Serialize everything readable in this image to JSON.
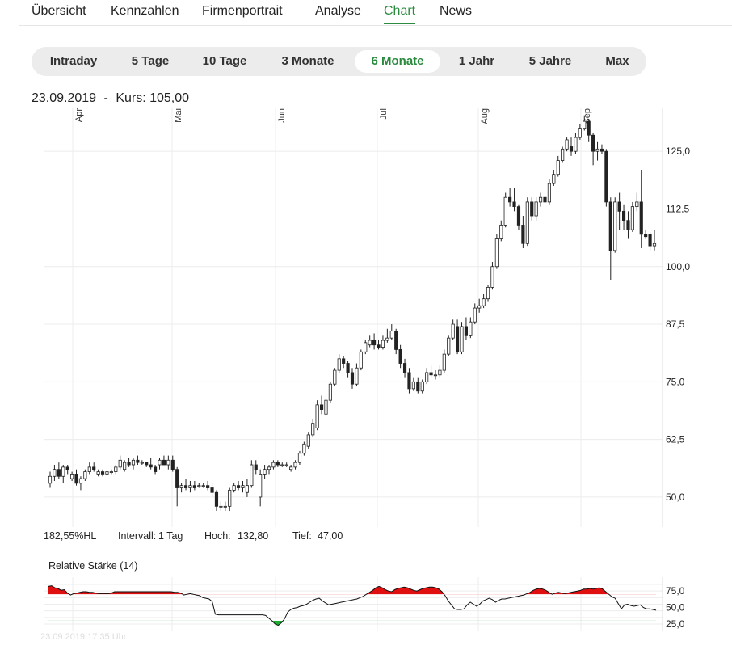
{
  "nav": {
    "tabs": [
      {
        "label": "Übersicht",
        "active": false
      },
      {
        "label": "Kennzahlen",
        "active": false
      },
      {
        "label": "Firmenportrait",
        "active": false
      },
      {
        "label": "Analyse",
        "active": false
      },
      {
        "label": "Chart",
        "active": true
      },
      {
        "label": "News",
        "active": false
      }
    ]
  },
  "ranges": [
    {
      "label": "Intraday",
      "active": false
    },
    {
      "label": "5 Tage",
      "active": false
    },
    {
      "label": "10 Tage",
      "active": false
    },
    {
      "label": "3 Monate",
      "active": false
    },
    {
      "label": "6 Monate",
      "active": true
    },
    {
      "label": "1 Jahr",
      "active": false
    },
    {
      "label": "5 Jahre",
      "active": false
    },
    {
      "label": "Max",
      "active": false
    }
  ],
  "quote": {
    "date": "23.09.2019",
    "separator": "-",
    "label": "Kurs:",
    "value": "105,00"
  },
  "info": {
    "range_pct": "182,55%HL",
    "interval_label": "Intervall:",
    "interval_value": "1 Tag",
    "high_label": "Hoch:",
    "high_value": "132,80",
    "low_label": "Tief:",
    "low_value": "47,00"
  },
  "rsi": {
    "title": "Relative Stärke (14)"
  },
  "timestamp": "23.09.2019 17:35 Uhr",
  "colors": {
    "accent": "#2a8a3e",
    "overbought": "#e01010",
    "oversold": "#18b02e",
    "candle": "#222222"
  },
  "chart_data": [
    {
      "type": "candlestick",
      "x_ticks": [
        "Apr",
        "Mai",
        "Jun",
        "Jul",
        "Aug",
        "Sep"
      ],
      "y_ticks": [
        "125,0",
        "112,5",
        "100,0",
        "87,5",
        "75,0",
        "62,5",
        "50,0"
      ],
      "ylim": [
        43.5,
        134.5
      ],
      "grid": true,
      "ohlc": [
        [
          53,
          55.5,
          52,
          54.5
        ],
        [
          54.5,
          57,
          53.5,
          56
        ],
        [
          56,
          57.5,
          54,
          54.5
        ],
        [
          54.5,
          57,
          53,
          56.5
        ],
        [
          56.5,
          57,
          55,
          56
        ],
        [
          54,
          55.5,
          53.5,
          55
        ],
        [
          55,
          56,
          52.5,
          53
        ],
        [
          53,
          54.5,
          51.5,
          54
        ],
        [
          54,
          56,
          53.5,
          55.5
        ],
        [
          55.5,
          57.5,
          55,
          56.5
        ],
        [
          56.5,
          57.5,
          55.5,
          56
        ],
        [
          55,
          56,
          54.5,
          55.5
        ],
        [
          55.5,
          56,
          54.5,
          55
        ],
        [
          55,
          56,
          54.5,
          55.5
        ],
        [
          55.5,
          56,
          55,
          55.5
        ],
        [
          55.5,
          57,
          55,
          56.5
        ],
        [
          56.5,
          59,
          56,
          58
        ],
        [
          56,
          58,
          55.5,
          57.5
        ],
        [
          57.5,
          58.5,
          56.5,
          57
        ],
        [
          57,
          58.5,
          56,
          58
        ],
        [
          58,
          59,
          57,
          57.5
        ],
        [
          57.5,
          58,
          57,
          57.5
        ],
        [
          57.5,
          57.5,
          56.5,
          57
        ],
        [
          57,
          58.5,
          56,
          56.5
        ],
        [
          56.5,
          57,
          55,
          55.5
        ],
        [
          57,
          58.5,
          56,
          58
        ],
        [
          58,
          59,
          57,
          57
        ],
        [
          57,
          59,
          56,
          58
        ],
        [
          58,
          59,
          55.5,
          56
        ],
        [
          56,
          56.5,
          48,
          52
        ],
        [
          52,
          53,
          51,
          52.5
        ],
        [
          52.5,
          54,
          51.5,
          52
        ],
        [
          52,
          53.5,
          51,
          52.5
        ],
        [
          52.5,
          53.5,
          51.5,
          52
        ],
        [
          52.5,
          53,
          52,
          52.5
        ],
        [
          52.5,
          53,
          52,
          52.5
        ],
        [
          52.5,
          53.5,
          51.5,
          52
        ],
        [
          52,
          53,
          50,
          51
        ],
        [
          51,
          51.5,
          47,
          48
        ],
        [
          48,
          49,
          47,
          48
        ],
        [
          48,
          49,
          47,
          48
        ],
        [
          48,
          52,
          47,
          51.5
        ],
        [
          51.5,
          53,
          51,
          52.5
        ],
        [
          52.5,
          53.5,
          51.5,
          52
        ],
        [
          52,
          53.5,
          51,
          52.5
        ],
        [
          51,
          54,
          50,
          52.5
        ],
        [
          52.5,
          58,
          52,
          57
        ],
        [
          57,
          58,
          55,
          56
        ],
        [
          50,
          56,
          48,
          55
        ],
        [
          55,
          57,
          54,
          56
        ],
        [
          56,
          57,
          55,
          56.5
        ],
        [
          56.5,
          58,
          56,
          57.5
        ],
        [
          57.5,
          58,
          56.5,
          57
        ],
        [
          57,
          57.5,
          56.5,
          57
        ],
        [
          57,
          57.5,
          56.5,
          57
        ],
        [
          56,
          57,
          55.5,
          56.5
        ],
        [
          56.5,
          58,
          56,
          57.5
        ],
        [
          57.5,
          60,
          57,
          59.5
        ],
        [
          59.5,
          62,
          59,
          61.5
        ],
        [
          61,
          64,
          60.5,
          63.5
        ],
        [
          63.5,
          67,
          63,
          66
        ],
        [
          65,
          71,
          64.5,
          70
        ],
        [
          70,
          72,
          68,
          69
        ],
        [
          68,
          72,
          67.5,
          71
        ],
        [
          71,
          75,
          70.5,
          74.5
        ],
        [
          74.5,
          78,
          74,
          77.5
        ],
        [
          77.5,
          81,
          77,
          80
        ],
        [
          80,
          80.5,
          78,
          79
        ],
        [
          79,
          79.5,
          76,
          77
        ],
        [
          77,
          78,
          73.5,
          74.5
        ],
        [
          74.5,
          79,
          74,
          78
        ],
        [
          78,
          82,
          77.5,
          81.5
        ],
        [
          81.5,
          84,
          81,
          83.5
        ],
        [
          83,
          85,
          82.5,
          84
        ],
        [
          84,
          85.5,
          82,
          83
        ],
        [
          83,
          84,
          82,
          82.5
        ],
        [
          82.5,
          85,
          82,
          84
        ],
        [
          84,
          86.5,
          83.5,
          84.5
        ],
        [
          84.5,
          87.5,
          84,
          86
        ],
        [
          86,
          86.5,
          81,
          82
        ],
        [
          82,
          83,
          78,
          79
        ],
        [
          79,
          80,
          76,
          77
        ],
        [
          77,
          78,
          72.5,
          73.5
        ],
        [
          73.5,
          76,
          73,
          75
        ],
        [
          75,
          76,
          72.5,
          73
        ],
        [
          73,
          75.5,
          72.5,
          75
        ],
        [
          75,
          78,
          74.5,
          77
        ],
        [
          77,
          78.5,
          76,
          76.5
        ],
        [
          76.5,
          77.5,
          75.5,
          76.5
        ],
        [
          76.5,
          78.5,
          76,
          77.5
        ],
        [
          77.5,
          82,
          77,
          81
        ],
        [
          81,
          85,
          80.5,
          84.5
        ],
        [
          84.5,
          88.5,
          84,
          87.5
        ],
        [
          87,
          88.5,
          81,
          81.5
        ],
        [
          81.5,
          88,
          81,
          87
        ],
        [
          87,
          89,
          84,
          85
        ],
        [
          85,
          89,
          84.5,
          88
        ],
        [
          88,
          92,
          87.5,
          91
        ],
        [
          91,
          93,
          90,
          91.5
        ],
        [
          91.5,
          94,
          91,
          93
        ],
        [
          93,
          96,
          92.5,
          95.5
        ],
        [
          95.5,
          101,
          95,
          100
        ],
        [
          100,
          107,
          99.5,
          106
        ],
        [
          106,
          110,
          105.5,
          109
        ],
        [
          109,
          116,
          108.5,
          115
        ],
        [
          115,
          117,
          113,
          114
        ],
        [
          114,
          117,
          112,
          113
        ],
        [
          113,
          113.5,
          108,
          109
        ],
        [
          109,
          111,
          104,
          105
        ],
        [
          105,
          115,
          104.5,
          114
        ],
        [
          114,
          115,
          110,
          111
        ],
        [
          111,
          115,
          110,
          114
        ],
        [
          114,
          116,
          113,
          115
        ],
        [
          115,
          115.5,
          113,
          114
        ],
        [
          114,
          119,
          113.5,
          118
        ],
        [
          118,
          121,
          117.5,
          120
        ],
        [
          120,
          124,
          119.5,
          123
        ],
        [
          123,
          126,
          122.5,
          125.5
        ],
        [
          125.5,
          128,
          125,
          127.5
        ],
        [
          126,
          128,
          124,
          125
        ],
        [
          125,
          129,
          124.5,
          128
        ],
        [
          128,
          131,
          127.5,
          130
        ],
        [
          130,
          132.8,
          129.5,
          131.5
        ],
        [
          131.5,
          132,
          127,
          128.5
        ],
        [
          128.5,
          129,
          122,
          125
        ],
        [
          125,
          127,
          123,
          125.5
        ],
        [
          125.5,
          126.5,
          124.5,
          125
        ],
        [
          125,
          125.5,
          113,
          114
        ],
        [
          114,
          115,
          97,
          103.5
        ],
        [
          103.5,
          115,
          103,
          114
        ],
        [
          114,
          116,
          108,
          112
        ],
        [
          112,
          113.5,
          108,
          110
        ],
        [
          110,
          112,
          106,
          108
        ],
        [
          108,
          114,
          107.5,
          113
        ],
        [
          113,
          116,
          112,
          114
        ],
        [
          114,
          121,
          104,
          107
        ],
        [
          107,
          108,
          106,
          106.5
        ],
        [
          107,
          107.5,
          103.5,
          104.5
        ],
        [
          104.5,
          108,
          103.5,
          105
        ]
      ]
    },
    {
      "type": "area",
      "title": "Relative Stärke (14)",
      "y_ticks": [
        "75,0",
        "50,0",
        "25,0"
      ],
      "ylim": [
        14,
        96
      ],
      "thresholds": [
        70,
        30
      ],
      "values": [
        82,
        83,
        80,
        79,
        76,
        77,
        72,
        69,
        71,
        72,
        73,
        74,
        74,
        73,
        73,
        72,
        71,
        71,
        71,
        71,
        72,
        74,
        74,
        74,
        74,
        74,
        74,
        74,
        74,
        74,
        74,
        74,
        74,
        74,
        74,
        74,
        74,
        74,
        74,
        74,
        73,
        73,
        72,
        69,
        70,
        71,
        70,
        69,
        68,
        65,
        64,
        63,
        59,
        40,
        39,
        39,
        39,
        39,
        39,
        39,
        39,
        39,
        39,
        39,
        39,
        39,
        39,
        39,
        39,
        38,
        34,
        30,
        25,
        23,
        27,
        33,
        43,
        47,
        49,
        50,
        52,
        53,
        55,
        58,
        61,
        63,
        64,
        60,
        57,
        54,
        55,
        56,
        57,
        58,
        59,
        60,
        61,
        62,
        63,
        65,
        67,
        70,
        73,
        76,
        80,
        82,
        80,
        77,
        75,
        74,
        77,
        79,
        80,
        81,
        80,
        78,
        76,
        75,
        77,
        79,
        80,
        81,
        81,
        80,
        78,
        74,
        68,
        60,
        54,
        48,
        47,
        47,
        48,
        54,
        58,
        55,
        52,
        55,
        60,
        62,
        64,
        62,
        58,
        61,
        63,
        63,
        64,
        65,
        66,
        67,
        68,
        69,
        71,
        73,
        76,
        78,
        79,
        78,
        76,
        73,
        70,
        72,
        73,
        72,
        71,
        72,
        73,
        74,
        75,
        76,
        78,
        78,
        79,
        78,
        79,
        80,
        78,
        74,
        70,
        66,
        64,
        56,
        48,
        54,
        55,
        53,
        52,
        53,
        54,
        50,
        48,
        48,
        47,
        46
      ]
    }
  ]
}
